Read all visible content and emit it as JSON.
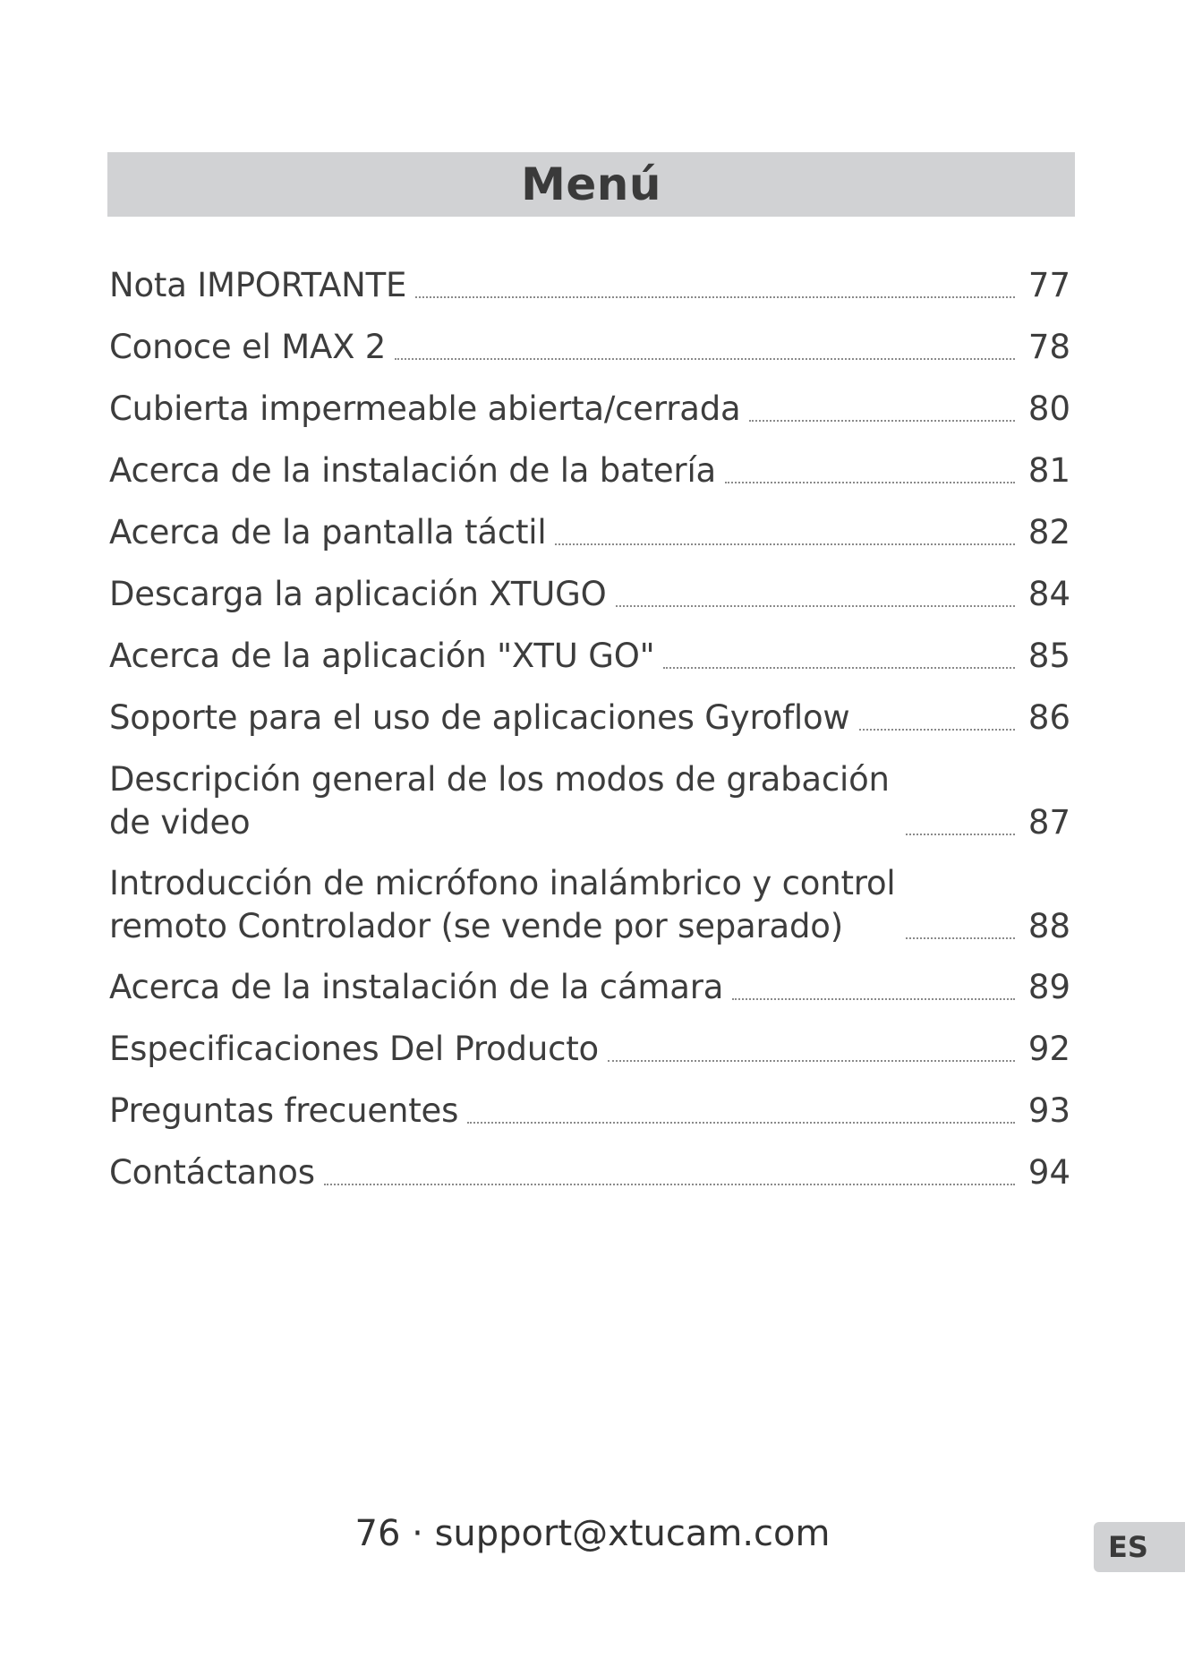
{
  "header": {
    "title": "Menú"
  },
  "toc": {
    "entries": [
      {
        "title": "Nota IMPORTANTE",
        "page": "77"
      },
      {
        "title": "Conoce el MAX 2",
        "page": "78"
      },
      {
        "title": "Cubierta impermeable abierta/cerrada",
        "page": "80"
      },
      {
        "title": "Acerca de la instalación de la batería",
        "page": "81"
      },
      {
        "title": "Acerca de la pantalla táctil",
        "page": "82"
      },
      {
        "title": "Descarga la aplicación XTUGO",
        "page": "84"
      },
      {
        "title": "Acerca de la aplicación \"XTU GO\"",
        "page": "85"
      },
      {
        "title": "Soporte para el uso de aplicaciones Gyroflow",
        "page": "86"
      },
      {
        "title": "Descripción general de los modos de grabación de video",
        "page": "87"
      },
      {
        "title": "Introducción de micrófono inalámbrico y control remoto Controlador (se vende por separado)",
        "page": "88"
      },
      {
        "title": "Acerca de la instalación de la cámara",
        "page": "89"
      },
      {
        "title": "Especificaciones Del Producto",
        "page": "92"
      },
      {
        "title": "Preguntas frecuentes",
        "page": "93"
      },
      {
        "title": "Contáctanos",
        "page": "94"
      }
    ]
  },
  "footer": {
    "text": "76 · support@xtucam.com"
  },
  "language_tab": {
    "label": "ES"
  }
}
